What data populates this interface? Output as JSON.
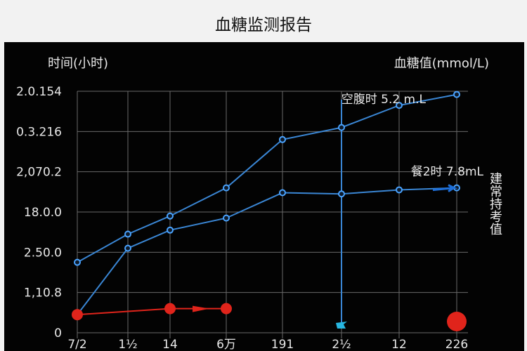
{
  "page_title": "血糖监测报告",
  "chart_data": {
    "type": "line",
    "title": "血糖监测报告",
    "xlabel": "时间(小时)",
    "ylabel": "血糖值(mmol/L)",
    "x_tick_labels": [
      "7/2",
      "1½",
      "14",
      "6万",
      "191",
      "2½",
      "12",
      "226"
    ],
    "y_tick_labels": [
      "2.0.154",
      "0.3.216",
      "2,070.2",
      "18.0.0",
      "2.50.0",
      "1,10.8",
      "0"
    ],
    "ylim": [
      0,
      6
    ],
    "grid": true,
    "series": [
      {
        "name": "空腹时 5.2 m.L",
        "color": "#3a86d4",
        "values": [
          1.75,
          2.45,
          2.9,
          3.6,
          4.8,
          5.1,
          5.65,
          5.92
        ]
      },
      {
        "name": "餐2时 7.8mL",
        "color": "#3a86d4",
        "values": [
          0.45,
          2.1,
          2.55,
          2.85,
          3.48,
          3.45,
          3.55,
          3.6
        ]
      },
      {
        "name": "",
        "color": "#e0241b",
        "values": [
          0.45,
          null,
          0.6,
          0.6
        ]
      }
    ],
    "reference_line_x_index": 5,
    "side_note": "建常持考值",
    "colors": {
      "line": "#3a86d4",
      "red": "#e0241b",
      "grid": "#6a6a6a",
      "background": "#030303"
    }
  }
}
